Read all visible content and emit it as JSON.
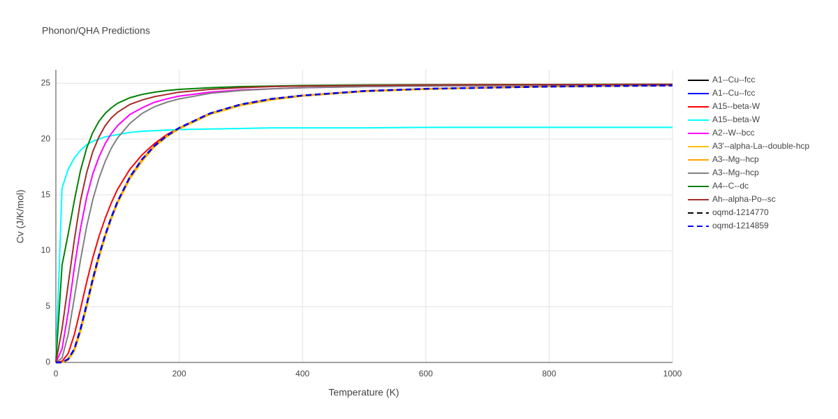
{
  "chart_data": {
    "type": "line",
    "title": "Phonon/QHA Predictions",
    "x_label": "Temperature (K)",
    "y_label": "Cv (J/K/mol)",
    "xlim": [
      0,
      1000
    ],
    "ylim": [
      0,
      26.2
    ],
    "xticks": [
      0,
      200,
      400,
      600,
      800,
      1000
    ],
    "yticks": [
      0,
      5,
      10,
      15,
      20,
      25
    ],
    "grid": true,
    "x": [
      0,
      10,
      20,
      30,
      40,
      50,
      60,
      70,
      80,
      90,
      100,
      120,
      140,
      160,
      180,
      200,
      250,
      300,
      350,
      400,
      500,
      600,
      700,
      800,
      900,
      1000
    ],
    "series": [
      {
        "name": "A1--Cu--fcc",
        "color": "#000000",
        "dash": "solid",
        "values": [
          0,
          0,
          0.3,
          1.2,
          3.0,
          5.2,
          7.5,
          9.6,
          11.4,
          13.0,
          14.4,
          16.6,
          18.2,
          19.4,
          20.3,
          21.0,
          22.3,
          23.1,
          23.6,
          23.9,
          24.3,
          24.5,
          24.6,
          24.7,
          24.75,
          24.8
        ]
      },
      {
        "name": "A1--Cu--fcc",
        "color": "#0000ff",
        "dash": "solid",
        "values": [
          0,
          0,
          0.3,
          1.2,
          3.0,
          5.2,
          7.5,
          9.6,
          11.4,
          13.0,
          14.4,
          16.6,
          18.2,
          19.4,
          20.3,
          21.0,
          22.3,
          23.1,
          23.6,
          23.9,
          24.3,
          24.5,
          24.6,
          24.7,
          24.75,
          24.8
        ]
      },
      {
        "name": "A15--beta-W",
        "color": "#ff0000",
        "dash": "solid",
        "values": [
          0,
          0.1,
          0.8,
          2.5,
          4.8,
          7.2,
          9.4,
          11.3,
          12.9,
          14.3,
          15.5,
          17.3,
          18.6,
          19.6,
          20.4,
          21.0,
          22.3,
          23.1,
          23.6,
          23.9,
          24.3,
          24.5,
          24.6,
          24.7,
          24.75,
          24.8
        ]
      },
      {
        "name": "A15--beta-W",
        "color": "#00ffff",
        "dash": "solid",
        "values": [
          0,
          15.6,
          17.3,
          18.3,
          19.0,
          19.5,
          19.8,
          20.0,
          20.2,
          20.3,
          20.4,
          20.6,
          20.7,
          20.75,
          20.8,
          20.85,
          20.9,
          20.95,
          21.0,
          21.0,
          21.0,
          21.05,
          21.05,
          21.05,
          21.05,
          21.05
        ]
      },
      {
        "name": "A2--W--bcc",
        "color": "#ff00ff",
        "dash": "solid",
        "values": [
          0,
          1.2,
          4.5,
          8.5,
          12,
          14.8,
          16.9,
          18.4,
          19.6,
          20.5,
          21.2,
          22.2,
          22.8,
          23.3,
          23.6,
          23.85,
          24.2,
          24.4,
          24.5,
          24.6,
          24.7,
          24.75,
          24.78,
          24.8,
          24.82,
          24.83
        ]
      },
      {
        "name": "A3'--alpha-La--double-hcp",
        "color": "#ffc000",
        "dash": "solid",
        "values": [
          0,
          0,
          0.2,
          1.0,
          2.7,
          4.9,
          7.2,
          9.3,
          11.2,
          12.8,
          14.2,
          16.4,
          18.0,
          19.3,
          20.2,
          20.9,
          22.2,
          23.0,
          23.5,
          23.85,
          24.25,
          24.45,
          24.6,
          24.7,
          24.75,
          24.8
        ]
      },
      {
        "name": "A3--Mg--hcp",
        "color": "#ffa500",
        "dash": "solid",
        "values": [
          0,
          0,
          0.3,
          1.2,
          3.0,
          5.2,
          7.5,
          9.6,
          11.4,
          13.0,
          14.4,
          16.6,
          18.2,
          19.4,
          20.3,
          21.0,
          22.3,
          23.1,
          23.6,
          23.9,
          24.3,
          24.5,
          24.6,
          24.7,
          24.75,
          24.8
        ]
      },
      {
        "name": "A3--Mg--hcp",
        "color": "#808080",
        "dash": "solid",
        "values": [
          0,
          0.4,
          2.5,
          5.8,
          9.2,
          12.2,
          14.6,
          16.5,
          18.0,
          19.2,
          20.1,
          21.4,
          22.3,
          22.9,
          23.3,
          23.6,
          24.1,
          24.35,
          24.5,
          24.6,
          24.7,
          24.75,
          24.78,
          24.8,
          24.82,
          24.83
        ]
      },
      {
        "name": "A4--C--dc",
        "color": "#008000",
        "dash": "solid",
        "values": [
          0,
          8.7,
          11.5,
          14.5,
          17.2,
          19.2,
          20.6,
          21.6,
          22.3,
          22.8,
          23.2,
          23.7,
          24.0,
          24.2,
          24.35,
          24.45,
          24.6,
          24.7,
          24.75,
          24.8,
          24.85,
          24.87,
          24.88,
          24.89,
          24.9,
          24.9
        ]
      },
      {
        "name": "Ah--alpha-Po--sc",
        "color": "#a52a2a",
        "dash": "solid",
        "values": [
          0,
          3,
          7,
          11,
          14.5,
          17,
          18.9,
          20.2,
          21.2,
          21.9,
          22.4,
          23.1,
          23.5,
          23.8,
          24.0,
          24.2,
          24.45,
          24.6,
          24.7,
          24.75,
          24.8,
          24.85,
          24.87,
          24.88,
          24.89,
          24.9
        ]
      },
      {
        "name": "oqmd-1214770",
        "color": "#000000",
        "dash": "dash",
        "values": [
          0,
          0,
          0.3,
          1.2,
          3.0,
          5.2,
          7.5,
          9.6,
          11.4,
          13.0,
          14.4,
          16.6,
          18.2,
          19.4,
          20.3,
          21.0,
          22.3,
          23.1,
          23.6,
          23.9,
          24.3,
          24.5,
          24.6,
          24.7,
          24.75,
          24.8
        ]
      },
      {
        "name": "oqmd-1214859",
        "color": "#0000ff",
        "dash": "dash",
        "values": [
          0,
          0,
          0.3,
          1.2,
          3.0,
          5.2,
          7.5,
          9.6,
          11.4,
          13.0,
          14.4,
          16.6,
          18.2,
          19.4,
          20.3,
          21.0,
          22.3,
          23.1,
          23.6,
          23.9,
          24.3,
          24.5,
          24.6,
          24.7,
          24.75,
          24.8
        ]
      }
    ]
  }
}
